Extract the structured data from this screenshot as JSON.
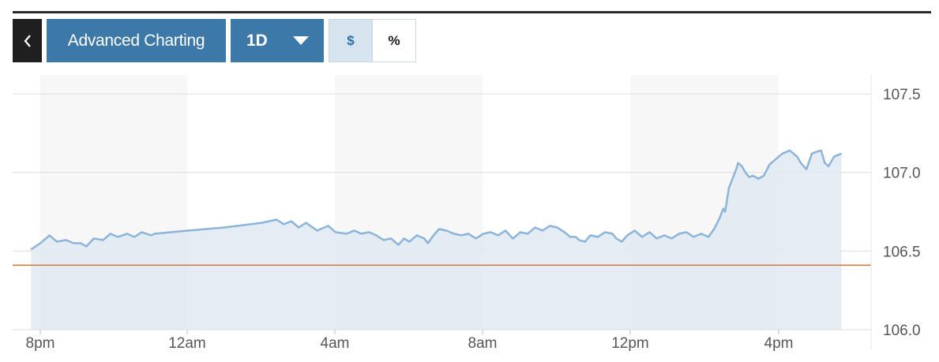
{
  "toolbar": {
    "back_icon": "chevron-left-icon",
    "advanced_label": "Advanced Charting",
    "range_label": "1D",
    "range_caret_icon": "caret-down-icon",
    "dollar_label": "$",
    "percent_label": "%",
    "active_toggle": "$"
  },
  "colors": {
    "button_blue": "#3d79a8",
    "line": "#8cb4d9",
    "area": "#e1eaf2",
    "reference_line": "#d9733a"
  },
  "chart_data": {
    "type": "area",
    "x_ticks": [
      "8pm",
      "12am",
      "4am",
      "8am",
      "12pm",
      "4pm"
    ],
    "y_ticks": [
      106.0,
      106.5,
      107.0,
      107.5
    ],
    "ylim": [
      105.95,
      107.55
    ],
    "x_range_hours": [
      -0.25,
      22.0
    ],
    "reference_value": 106.41,
    "grid": true,
    "points": [
      [
        -0.25,
        106.51
      ],
      [
        0.0,
        106.55
      ],
      [
        0.25,
        106.6
      ],
      [
        0.45,
        106.56
      ],
      [
        0.7,
        106.57
      ],
      [
        0.9,
        106.55
      ],
      [
        1.1,
        106.55
      ],
      [
        1.25,
        106.53
      ],
      [
        1.45,
        106.58
      ],
      [
        1.7,
        106.57
      ],
      [
        1.9,
        106.61
      ],
      [
        2.1,
        106.59
      ],
      [
        2.35,
        106.61
      ],
      [
        2.55,
        106.59
      ],
      [
        2.75,
        106.62
      ],
      [
        3.0,
        106.6
      ],
      [
        3.1,
        106.61
      ],
      [
        4.0,
        106.63
      ],
      [
        5.0,
        106.65
      ],
      [
        6.0,
        106.68
      ],
      [
        6.4,
        106.7
      ],
      [
        6.6,
        106.67
      ],
      [
        6.8,
        106.69
      ],
      [
        7.0,
        106.65
      ],
      [
        7.2,
        106.68
      ],
      [
        7.5,
        106.63
      ],
      [
        7.8,
        106.66
      ],
      [
        8.0,
        106.62
      ],
      [
        8.3,
        106.61
      ],
      [
        8.5,
        106.63
      ],
      [
        8.7,
        106.61
      ],
      [
        8.9,
        106.62
      ],
      [
        9.1,
        106.6
      ],
      [
        9.3,
        106.57
      ],
      [
        9.5,
        106.58
      ],
      [
        9.7,
        106.54
      ],
      [
        9.85,
        106.58
      ],
      [
        10.0,
        106.56
      ],
      [
        10.2,
        106.6
      ],
      [
        10.4,
        106.58
      ],
      [
        10.5,
        106.55
      ],
      [
        10.65,
        106.6
      ],
      [
        10.8,
        106.64
      ],
      [
        11.0,
        106.63
      ],
      [
        11.2,
        106.61
      ],
      [
        11.4,
        106.6
      ],
      [
        11.6,
        106.61
      ],
      [
        11.8,
        106.58
      ],
      [
        12.0,
        106.61
      ],
      [
        12.2,
        106.62
      ],
      [
        12.4,
        106.6
      ],
      [
        12.6,
        106.63
      ],
      [
        12.8,
        106.58
      ],
      [
        13.0,
        106.62
      ],
      [
        13.2,
        106.61
      ],
      [
        13.4,
        106.65
      ],
      [
        13.6,
        106.63
      ],
      [
        13.8,
        106.66
      ],
      [
        14.0,
        106.65
      ],
      [
        14.2,
        106.62
      ],
      [
        14.35,
        106.59
      ],
      [
        14.5,
        106.59
      ],
      [
        14.6,
        106.57
      ],
      [
        14.75,
        106.56
      ],
      [
        14.9,
        106.6
      ],
      [
        15.1,
        106.59
      ],
      [
        15.3,
        106.62
      ],
      [
        15.5,
        106.61
      ],
      [
        15.6,
        106.58
      ],
      [
        15.75,
        106.56
      ],
      [
        15.9,
        106.6
      ],
      [
        16.1,
        106.63
      ],
      [
        16.3,
        106.59
      ],
      [
        16.5,
        106.62
      ],
      [
        16.7,
        106.58
      ],
      [
        16.9,
        106.6
      ],
      [
        17.1,
        106.58
      ],
      [
        17.3,
        106.61
      ],
      [
        17.5,
        106.62
      ],
      [
        17.7,
        106.59
      ],
      [
        17.9,
        106.61
      ],
      [
        18.0,
        106.6
      ],
      [
        18.1,
        106.59
      ],
      [
        18.25,
        106.64
      ],
      [
        18.4,
        106.71
      ],
      [
        18.5,
        106.77
      ],
      [
        18.55,
        106.75
      ],
      [
        18.65,
        106.9
      ],
      [
        18.75,
        106.96
      ],
      [
        18.85,
        107.02
      ],
      [
        18.9,
        107.06
      ],
      [
        19.0,
        107.04
      ],
      [
        19.1,
        107.0
      ],
      [
        19.2,
        106.97
      ],
      [
        19.3,
        106.98
      ],
      [
        19.45,
        106.96
      ],
      [
        19.6,
        106.98
      ],
      [
        19.75,
        107.05
      ],
      [
        19.9,
        107.08
      ],
      [
        20.1,
        107.12
      ],
      [
        20.3,
        107.14
      ],
      [
        20.5,
        107.1
      ],
      [
        20.6,
        107.06
      ],
      [
        20.75,
        107.02
      ],
      [
        20.9,
        107.12
      ],
      [
        21.0,
        107.13
      ],
      [
        21.15,
        107.14
      ],
      [
        21.25,
        107.06
      ],
      [
        21.35,
        107.04
      ],
      [
        21.5,
        107.1
      ],
      [
        21.7,
        107.12
      ]
    ]
  }
}
